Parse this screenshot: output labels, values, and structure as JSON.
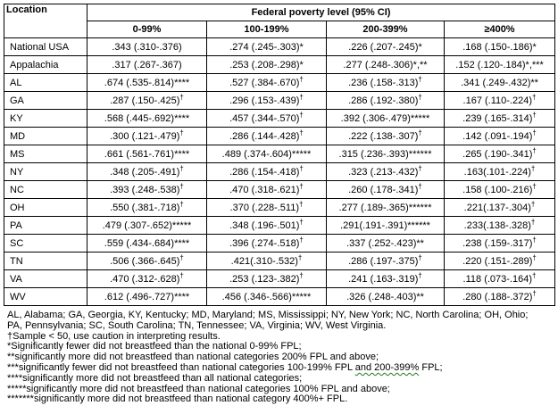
{
  "table": {
    "location_header": "Location",
    "group_header": "Federal poverty level (95% CI)",
    "columns": [
      "0-99%",
      "100-199%",
      "200-399%",
      "≥400%"
    ],
    "rows": [
      {
        "location": "National USA",
        "cells": [
          ".343 (.310-.376)",
          ".274 (.245-.303)*",
          ".226 (.207-.245)*",
          ".168 (.150-.186)*"
        ]
      },
      {
        "location": "Appalachia",
        "cells": [
          ".317 (.267-.367)",
          ".253 (.208-.298)*",
          ".277 (.248-.306)*,**",
          ".152 (.120-.184)*,***"
        ]
      },
      {
        "location": "AL",
        "cells": [
          ".674 (.535-.814)****",
          ".527 (.384-.670)†",
          ".236 (.158-.313)†",
          ".341 (.249-.432)**"
        ]
      },
      {
        "location": "GA",
        "cells": [
          ".287 (.150-.425)†",
          ".296 (.153-.439)†",
          ".286 (.192-.380)†",
          ".167 (.110-.224)†"
        ]
      },
      {
        "location": "KY",
        "cells": [
          ".568 (.445-.692)****",
          ".457 (.344-.570)†",
          ".392 (.306-.479)*****",
          ".239 (.165-.314)†"
        ]
      },
      {
        "location": "MD",
        "cells": [
          ".300 (.121-.479)†",
          ".286 (.144-.428)†",
          ".222 (.138-.307)†",
          ".142 (.091-.194)†"
        ]
      },
      {
        "location": "MS",
        "cells": [
          ".661 (.561-.761)****",
          ".489 (.374-.604)*****",
          ".315 (.236-.393)******",
          ".265 (.190-.341)†"
        ]
      },
      {
        "location": "NY",
        "cells": [
          ".348 (.205-.491)†",
          ".286 (.154-.418)†",
          ".323 (.213-.432)†",
          ".163(.101-.224)†"
        ]
      },
      {
        "location": "NC",
        "cells": [
          ".393 (.248-.538)†",
          ".470 (.318-.621)†",
          ".260 (.178-.341)†",
          ".158 (.100-.216)†"
        ]
      },
      {
        "location": "OH",
        "cells": [
          ".550 (.381-.718)†",
          ".370 (.228-.511)†",
          ".277 (.189-.365)******",
          ".221(.137-.304)†"
        ]
      },
      {
        "location": "PA",
        "cells": [
          ".479 (.307-.652)*****",
          ".348 (.196-.501)†",
          ".291(.191-.391)******",
          ".233(.138-.328)†"
        ]
      },
      {
        "location": "SC",
        "cells": [
          ".559 (.434-.684)****",
          ".396 (.274-.518)†",
          ".337 (.252-.423)**",
          ".238 (.159-.317)†"
        ]
      },
      {
        "location": "TN",
        "cells": [
          ".506 (.366-.645)†",
          ".421(.310-.532)†",
          ".286 (.197-.375)†",
          ".220 (.151-.289)†"
        ]
      },
      {
        "location": "VA",
        "cells": [
          ".470 (.312-.628)†",
          ".253 (.123-.382)†",
          ".241 (.163-.319)†",
          ".118 (.073-.164)†"
        ]
      },
      {
        "location": "WV",
        "cells": [
          ".612 (.496-.727)****",
          ".456 (.346-.566)*****",
          ".326 (.248-.403)**",
          ".280 (.188-.372)†"
        ]
      }
    ]
  },
  "footnotes": [
    {
      "text": "AL, Alabama; GA, Georgia, KY, Kentucky; MD, Maryland; MS, Mississippi; NY, New York; NC, North Carolina; OH, Ohio;"
    },
    {
      "text": "PA, Pennsylvania; SC, South Carolina; TN, Tennessee; VA, Virginia; WV, West Virginia."
    },
    {
      "text": "†Sample < 50, use caution in interpreting results."
    },
    {
      "text": "*Significantly fewer did not breastfeed than the national 0-99% FPL;"
    },
    {
      "text": "**significantly more did not breastfeed than national categories 200% FPL and above;"
    },
    {
      "text": "***significantly fewer did not breastfeed than national categories 100-199% FPL and 200-399% FPL;",
      "squiggle": "and 200-399%"
    },
    {
      "text": "****significantly more did not breastfeed than all national categories;"
    },
    {
      "text": "*****significantly more did not breastfeed than national categories 100% FPL and above;"
    },
    {
      "text": "*******significantly more did not breastfeed than national category 400%+ FPL."
    }
  ],
  "colors": {
    "text": "#000000",
    "border": "#000000",
    "background": "#ffffff",
    "spellcheck_squiggle": "#1e7b1e"
  }
}
